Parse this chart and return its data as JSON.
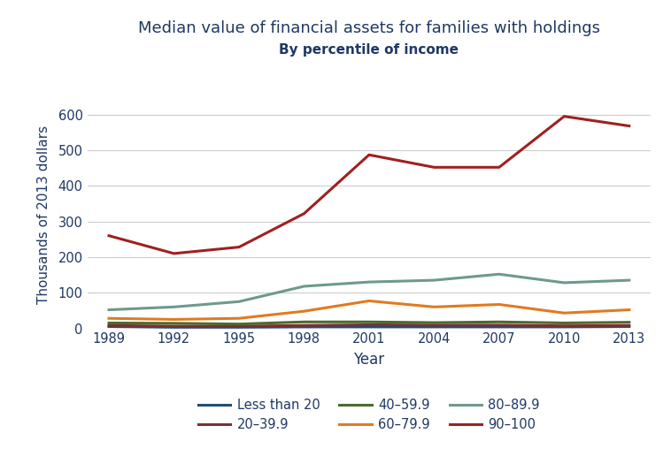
{
  "title": "Median value of financial assets for families with holdings",
  "subtitle": "By percentile of income",
  "xlabel": "Year",
  "ylabel": "Thousands of 2013 dollars",
  "years": [
    1989,
    1992,
    1995,
    1998,
    2001,
    2004,
    2007,
    2010,
    2013
  ],
  "series": [
    {
      "label": "Less than 20",
      "color": "#1f4e79",
      "values": [
        5,
        3,
        3,
        4,
        4,
        4,
        4,
        4,
        5
      ]
    },
    {
      "label": "20–39.9",
      "color": "#7b3030",
      "values": [
        8,
        6,
        6,
        8,
        10,
        9,
        9,
        7,
        8
      ]
    },
    {
      "label": "40–59.9",
      "color": "#4d6b2e",
      "values": [
        15,
        14,
        12,
        18,
        18,
        16,
        18,
        15,
        17
      ]
    },
    {
      "label": "60–79.9",
      "color": "#e07b20",
      "values": [
        28,
        25,
        28,
        48,
        77,
        60,
        67,
        43,
        52
      ]
    },
    {
      "label": "80–89.9",
      "color": "#6e9a8a",
      "values": [
        52,
        60,
        75,
        118,
        130,
        135,
        152,
        128,
        135
      ]
    },
    {
      "label": "90–100",
      "color": "#a02020",
      "values": [
        260,
        210,
        228,
        322,
        487,
        452,
        452,
        595,
        568
      ]
    }
  ],
  "ylim": [
    0,
    640
  ],
  "yticks": [
    0,
    100,
    200,
    300,
    400,
    500,
    600
  ],
  "xticks": [
    1989,
    1992,
    1995,
    1998,
    2001,
    2004,
    2007,
    2010,
    2013
  ],
  "grid_color": "#cccccc",
  "title_color": "#1f3864",
  "subtitle_color": "#1f3864",
  "axis_label_color": "#1f3864",
  "tick_color": "#1f3864",
  "legend_ncol": 3,
  "linewidth": 2.2
}
